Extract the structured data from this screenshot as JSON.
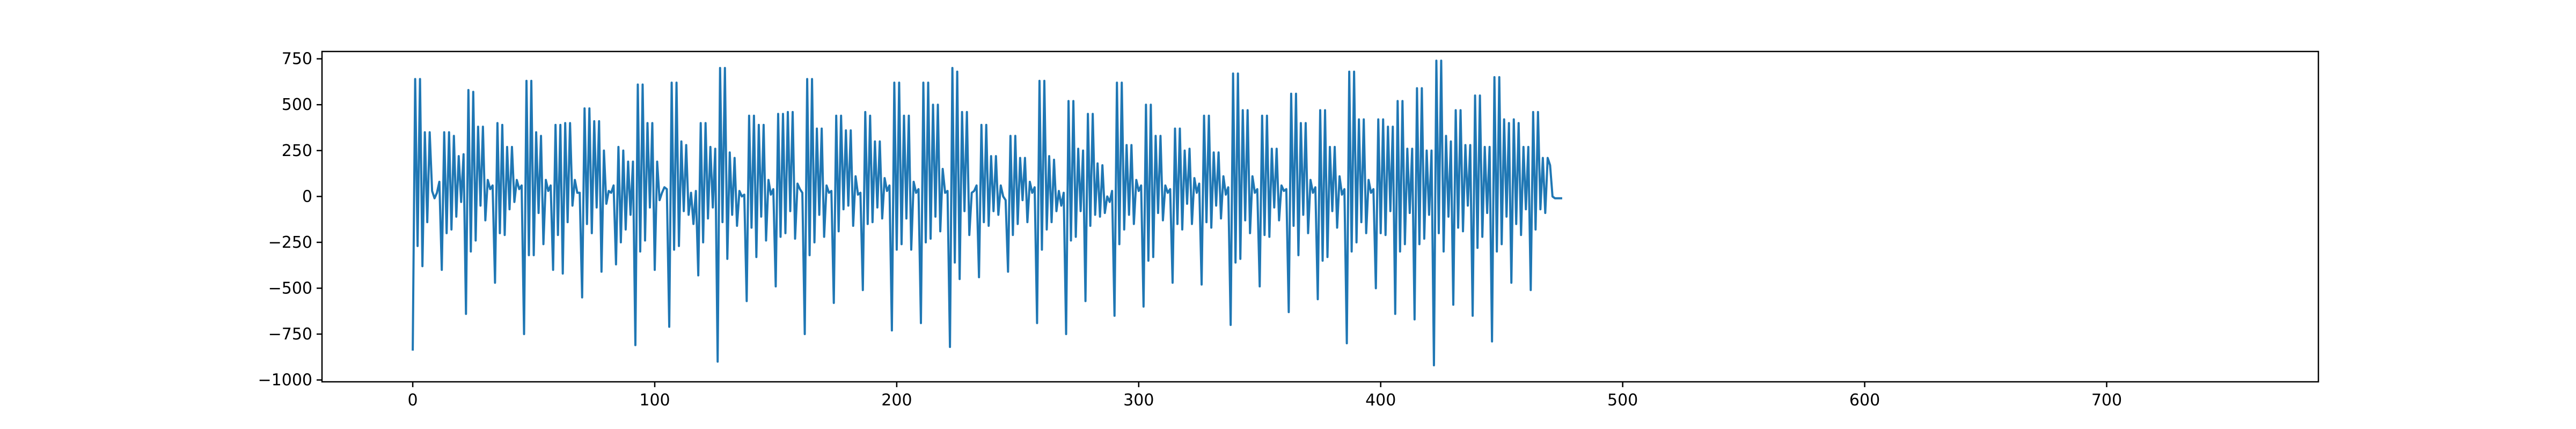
{
  "chart_data": {
    "type": "line",
    "title": "",
    "xlabel": "",
    "ylabel": "",
    "xlim": [
      -37.5,
      787.5
    ],
    "ylim": [
      -1010,
      790
    ],
    "x_ticks": [
      0,
      100,
      200,
      300,
      400,
      500,
      600,
      700
    ],
    "y_ticks": [
      -1000,
      -750,
      -500,
      -250,
      0,
      250,
      500,
      750
    ],
    "x_tick_labels": [
      "0",
      "100",
      "200",
      "300",
      "400",
      "500",
      "600",
      "700"
    ],
    "y_tick_labels": [
      "−1000",
      "−750",
      "−500",
      "−250",
      "0",
      "250",
      "500",
      "750"
    ],
    "grid": false,
    "legend": "none",
    "series": [
      {
        "color": "#1f77b4",
        "x_start": 0,
        "x_step": 1,
        "values": [
          -840,
          640,
          -270,
          640,
          -380,
          350,
          -140,
          350,
          30,
          -10,
          20,
          80,
          -400,
          350,
          -200,
          350,
          -180,
          330,
          -110,
          220,
          -30,
          230,
          -640,
          580,
          -300,
          570,
          -240,
          380,
          -50,
          380,
          -130,
          90,
          40,
          60,
          -470,
          400,
          -200,
          390,
          -210,
          270,
          -70,
          270,
          -30,
          90,
          40,
          60,
          -750,
          630,
          -320,
          630,
          -320,
          350,
          -90,
          330,
          -260,
          90,
          30,
          60,
          -400,
          390,
          -210,
          390,
          -420,
          400,
          -140,
          400,
          -50,
          90,
          20,
          20,
          -550,
          480,
          -150,
          480,
          -200,
          410,
          -60,
          410,
          -410,
          250,
          -40,
          30,
          20,
          60,
          -370,
          270,
          -250,
          250,
          -180,
          190,
          -100,
          190,
          -810,
          610,
          -300,
          610,
          -240,
          400,
          -60,
          400,
          -400,
          190,
          -20,
          20,
          50,
          40,
          -710,
          620,
          -290,
          620,
          -270,
          300,
          -80,
          280,
          -100,
          20,
          -150,
          30,
          -430,
          400,
          -250,
          400,
          -120,
          270,
          -60,
          260,
          -900,
          700,
          -140,
          700,
          -340,
          240,
          -100,
          210,
          -160,
          30,
          0,
          10,
          -570,
          440,
          -170,
          440,
          -330,
          390,
          -110,
          390,
          -240,
          90,
          10,
          40,
          -490,
          450,
          -220,
          450,
          -200,
          460,
          -80,
          460,
          -230,
          70,
          40,
          20,
          -750,
          640,
          -320,
          640,
          -250,
          370,
          -100,
          370,
          -220,
          60,
          20,
          30,
          -580,
          440,
          -190,
          440,
          -70,
          360,
          -50,
          360,
          -160,
          110,
          10,
          20,
          -510,
          460,
          -150,
          440,
          -140,
          300,
          -60,
          300,
          -120,
          100,
          30,
          60,
          -730,
          620,
          -290,
          620,
          -260,
          440,
          -120,
          440,
          -290,
          80,
          20,
          40,
          -690,
          620,
          -250,
          620,
          -230,
          500,
          -110,
          500,
          -190,
          150,
          20,
          30,
          -820,
          700,
          -360,
          680,
          -450,
          460,
          -80,
          460,
          -210,
          20,
          30,
          60,
          -440,
          390,
          -140,
          390,
          -160,
          220,
          -80,
          220,
          -100,
          60,
          0,
          -20,
          -410,
          330,
          -210,
          330,
          -150,
          210,
          -20,
          210,
          -140,
          80,
          20,
          50,
          -690,
          630,
          -290,
          630,
          -180,
          220,
          -140,
          200,
          -80,
          30,
          -50,
          20,
          -750,
          520,
          -240,
          520,
          -220,
          260,
          -80,
          250,
          -570,
          450,
          -160,
          450,
          -100,
          180,
          -110,
          170,
          -90,
          0,
          -30,
          30,
          -650,
          620,
          -260,
          620,
          -180,
          280,
          -100,
          280,
          -150,
          90,
          30,
          60,
          -600,
          500,
          -350,
          500,
          -330,
          330,
          -90,
          330,
          -130,
          60,
          20,
          40,
          -470,
          370,
          -150,
          370,
          -180,
          250,
          -40,
          260,
          -150,
          100,
          20,
          70,
          -480,
          440,
          -140,
          440,
          -170,
          240,
          -50,
          240,
          -120,
          110,
          10,
          50,
          -700,
          670,
          -360,
          670,
          -340,
          470,
          -130,
          470,
          -200,
          110,
          20,
          40,
          -490,
          440,
          -210,
          440,
          -220,
          260,
          -60,
          260,
          -130,
          60,
          30,
          40,
          -630,
          560,
          -160,
          560,
          -320,
          400,
          -100,
          400,
          -200,
          90,
          20,
          50,
          -560,
          470,
          -350,
          470,
          -330,
          270,
          -80,
          270,
          -170,
          110,
          10,
          40,
          -800,
          680,
          -300,
          680,
          -250,
          420,
          -140,
          420,
          -200,
          90,
          20,
          40,
          -500,
          420,
          -200,
          420,
          -210,
          380,
          -80,
          380,
          -640,
          520,
          -300,
          520,
          -260,
          260,
          -90,
          260,
          -670,
          590,
          -260,
          590,
          -230,
          250,
          -100,
          250,
          -920,
          740,
          -200,
          740,
          -300,
          330,
          -110,
          300,
          -590,
          470,
          -170,
          470,
          -190,
          280,
          -50,
          280,
          -650,
          550,
          -280,
          550,
          -220,
          270,
          -90,
          270,
          -790,
          650,
          -300,
          650,
          -260,
          420,
          -110,
          400,
          -470,
          420,
          -150,
          400,
          -210,
          270,
          -70,
          270,
          -510,
          460,
          -180,
          460,
          -70,
          210,
          -90,
          210,
          170,
          0,
          -10,
          -10,
          -10,
          -10
        ]
      }
    ]
  }
}
